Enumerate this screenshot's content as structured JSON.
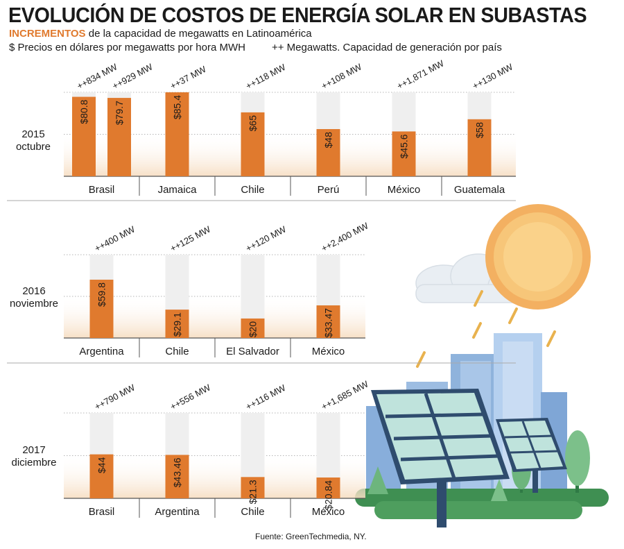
{
  "header": {
    "title": "EVOLUCIÓN DE COSTOS DE ENERGÍA SOLAR EN SUBASTAS",
    "subtitle_highlight": "INCREMENTOS",
    "subtitle_rest": "de la capacidad de megawatts en Latinoamérica",
    "legend_price": "$ Precios en dólares por megawatts por hora MWH",
    "legend_capacity": "++ Megawatts. Capacidad de generación por país"
  },
  "source": "Fuente: GreenTechmedia, NY.",
  "colors": {
    "bar": "#e07a2e",
    "track": "#efefef",
    "accent_text": "#e07a2e"
  },
  "chart_data": [
    {
      "type": "bar",
      "period_year": "2015",
      "period_month": "octubre",
      "groups": [
        {
          "country": "Brasil",
          "bars": [
            {
              "price": 80.8,
              "price_label": "$80.8",
              "mw_label": "++834 MW"
            },
            {
              "price": 79.7,
              "price_label": "$79.7",
              "mw_label": "++929 MW"
            }
          ]
        },
        {
          "country": "Jamaica",
          "bars": [
            {
              "price": 85.4,
              "price_label": "$85.4",
              "mw_label": "++37 MW"
            }
          ]
        },
        {
          "country": "Chile",
          "bars": [
            {
              "price": 65,
              "price_label": "$65",
              "mw_label": "++118 MW"
            }
          ]
        },
        {
          "country": "Perú",
          "bars": [
            {
              "price": 48,
              "price_label": "$48",
              "mw_label": "++108 MW"
            }
          ]
        },
        {
          "country": "México",
          "bars": [
            {
              "price": 45.6,
              "price_label": "$45.6",
              "mw_label": "++1,871 MW"
            }
          ]
        },
        {
          "country": "Guatemala",
          "bars": [
            {
              "price": 58,
              "price_label": "$58",
              "mw_label": "++130 MW"
            }
          ]
        }
      ]
    },
    {
      "type": "bar",
      "period_year": "2016",
      "period_month": "noviembre",
      "groups": [
        {
          "country": "Argentina",
          "bars": [
            {
              "price": 59.8,
              "price_label": "$59.8",
              "mw_label": "++400 MW"
            }
          ]
        },
        {
          "country": "Chile",
          "bars": [
            {
              "price": 29.1,
              "price_label": "$29.1",
              "mw_label": "++125 MW"
            }
          ]
        },
        {
          "country": "El Salvador",
          "bars": [
            {
              "price": 20,
              "price_label": "$20",
              "mw_label": "++120 MW"
            }
          ]
        },
        {
          "country": "México",
          "bars": [
            {
              "price": 33.47,
              "price_label": "$33.47",
              "mw_label": "++2,400 MW"
            }
          ]
        }
      ]
    },
    {
      "type": "bar",
      "period_year": "2017",
      "period_month": "diciembre",
      "groups": [
        {
          "country": "Brasil",
          "bars": [
            {
              "price": 44,
              "price_label": "$44",
              "mw_label": "++790 MW"
            }
          ]
        },
        {
          "country": "Argentina",
          "bars": [
            {
              "price": 43.46,
              "price_label": "$43.46",
              "mw_label": "++556 MW"
            }
          ]
        },
        {
          "country": "Chile",
          "bars": [
            {
              "price": 21.3,
              "price_label": "$21.3",
              "mw_label": "++116 MW"
            }
          ]
        },
        {
          "country": "México",
          "bars": [
            {
              "price": 20.84,
              "price_label": "$20.84",
              "mw_label": "++1,685 MW"
            }
          ]
        }
      ]
    }
  ]
}
